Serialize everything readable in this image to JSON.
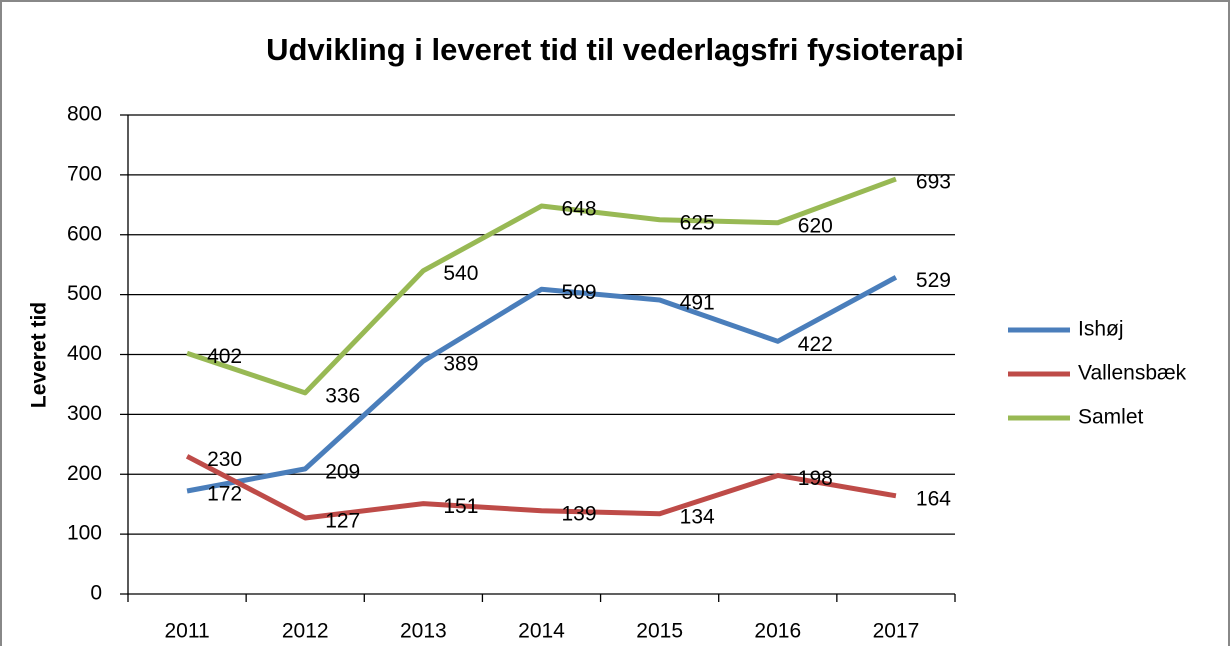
{
  "chart_data": {
    "type": "line",
    "title": "Udvikling i leveret tid til vederlagsfri fysioterapi",
    "y_label": "Leveret tid",
    "categories": [
      "2011",
      "2012",
      "2013",
      "2014",
      "2015",
      "2016",
      "2017"
    ],
    "series": [
      {
        "name": "Ishøj",
        "color": "#4a7ebb",
        "values": [
          172,
          209,
          389,
          509,
          491,
          422,
          529
        ]
      },
      {
        "name": "Vallensbæk",
        "color": "#be4b48",
        "values": [
          230,
          127,
          151,
          139,
          134,
          198,
          164
        ]
      },
      {
        "name": "Samlet",
        "color": "#98b954",
        "values": [
          402,
          336,
          540,
          648,
          625,
          620,
          693
        ]
      }
    ],
    "ylim": [
      0,
      800
    ],
    "yticks": [
      0,
      100,
      200,
      300,
      400,
      500,
      600,
      700,
      800
    ],
    "grid": true,
    "legend": "right"
  }
}
